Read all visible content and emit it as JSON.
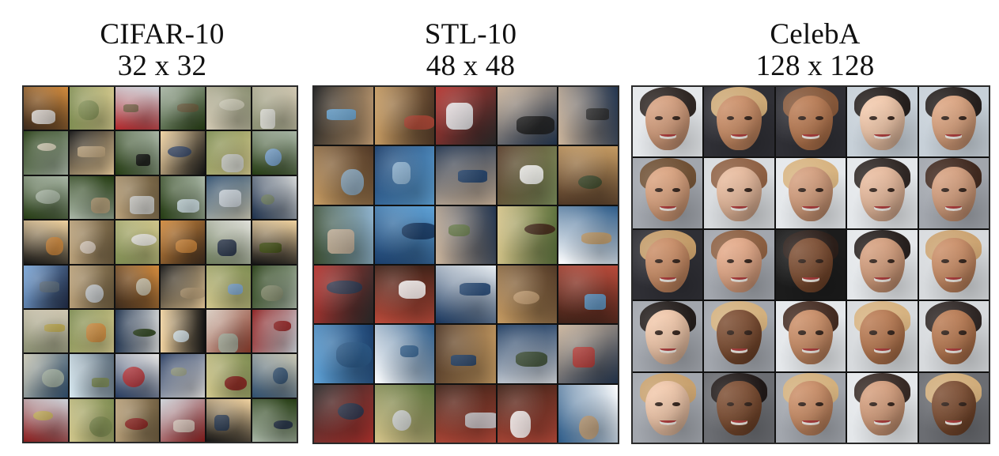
{
  "panels": [
    {
      "title": "CIFAR-10",
      "resolution": "32 x 32",
      "grid": {
        "rows": 8,
        "cols": 6
      }
    },
    {
      "title": "STL-10",
      "resolution": "48 x 48",
      "grid": {
        "rows": 6,
        "cols": 5
      }
    },
    {
      "title": "CelebA",
      "resolution": "128 x 128",
      "grid": {
        "rows": 5,
        "cols": 5
      }
    }
  ]
}
